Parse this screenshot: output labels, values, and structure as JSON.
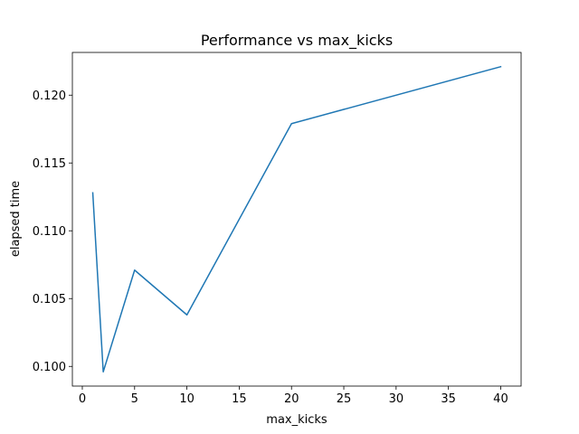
{
  "chart_data": {
    "type": "line",
    "title": "Performance vs max_kicks",
    "xlabel": "max_kicks",
    "ylabel": "elapsed time",
    "xlim": [
      -0.95,
      41.95
    ],
    "ylim": [
      0.09855,
      0.12315
    ],
    "xticks": [
      0,
      5,
      10,
      15,
      20,
      25,
      30,
      35,
      40
    ],
    "yticks": [
      0.1,
      0.105,
      0.11,
      0.115,
      0.12
    ],
    "ytick_labels": [
      "0.100",
      "0.105",
      "0.110",
      "0.115",
      "0.120"
    ],
    "grid": false,
    "series": [
      {
        "color": "#1f77b4",
        "x": [
          1,
          2,
          5,
          10,
          20,
          40
        ],
        "y": [
          0.1128,
          0.0996,
          0.1071,
          0.1038,
          0.1179,
          0.1221
        ]
      }
    ]
  }
}
